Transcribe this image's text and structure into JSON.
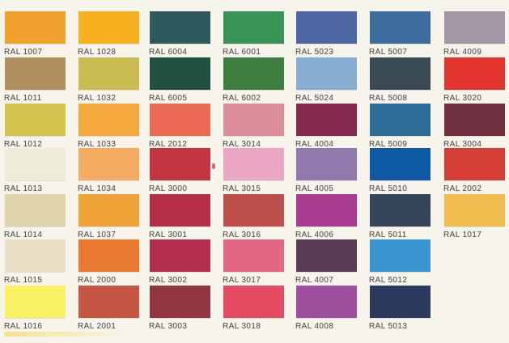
{
  "page": {
    "title": "RAL colour shade chart",
    "background": "#f7f4ec",
    "label_text_color": "#4f4e4b"
  },
  "chart": {
    "columns": [
      {
        "cells": [
          {
            "code": "RAL 1007",
            "color": "#f0a02c"
          },
          {
            "code": "RAL 1011",
            "color": "#b18f5e"
          },
          {
            "code": "RAL 1012",
            "color": "#d3c54e"
          },
          {
            "code": "RAL 1013",
            "color": "#f0ecdc"
          },
          {
            "code": "RAL 1014",
            "color": "#ded3ab"
          },
          {
            "code": "RAL 1015",
            "color": "#e8dfc4"
          },
          {
            "code": "RAL 1016",
            "color": "#f7f163"
          }
        ]
      },
      {
        "cells": [
          {
            "code": "RAL 1028",
            "color": "#f7b01f"
          },
          {
            "code": "RAL 1032",
            "color": "#c9bc50"
          },
          {
            "code": "RAL 1033",
            "color": "#f5a93c"
          },
          {
            "code": "RAL 1034",
            "color": "#f4ab62"
          },
          {
            "code": "RAL 1037",
            "color": "#f0a438"
          },
          {
            "code": "RAL 2000",
            "color": "#e8792f"
          },
          {
            "code": "RAL 2001",
            "color": "#c65543"
          }
        ]
      },
      {
        "cells": [
          {
            "code": "RAL 6004",
            "color": "#2e5a5e"
          },
          {
            "code": "RAL 6005",
            "color": "#1f5041"
          },
          {
            "code": "RAL 2012",
            "color": "#ed6a55"
          },
          {
            "code": "RAL 3000",
            "color": "#c43441"
          },
          {
            "code": "RAL 3001",
            "color": "#b42e47"
          },
          {
            "code": "RAL 3002",
            "color": "#b32e4c"
          },
          {
            "code": "RAL 3003",
            "color": "#923543"
          }
        ]
      },
      {
        "cells": [
          {
            "code": "RAL 6001",
            "color": "#379455"
          },
          {
            "code": "RAL 6002",
            "color": "#3d7e41"
          },
          {
            "code": "RAL 3014",
            "color": "#dc8e9b"
          },
          {
            "code": "RAL 3015",
            "color": "#eba6c3"
          },
          {
            "code": "RAL 3016",
            "color": "#bd4f4c"
          },
          {
            "code": "RAL 3017",
            "color": "#e36682"
          },
          {
            "code": "RAL 3018",
            "color": "#e54c64"
          }
        ]
      },
      {
        "cells": [
          {
            "code": "RAL 5023",
            "color": "#4d66a4"
          },
          {
            "code": "RAL 5024",
            "color": "#85aed0"
          },
          {
            "code": "RAL 4004",
            "color": "#872a50"
          },
          {
            "code": "RAL 4005",
            "color": "#9179ae"
          },
          {
            "code": "RAL 4006",
            "color": "#a83b90"
          },
          {
            "code": "RAL 4007",
            "color": "#5b3c56"
          },
          {
            "code": "RAL 4008",
            "color": "#9e4f9e"
          }
        ]
      },
      {
        "cells": [
          {
            "code": "RAL 5007",
            "color": "#3c6b9e"
          },
          {
            "code": "RAL 5008",
            "color": "#394a54"
          },
          {
            "code": "RAL 5009",
            "color": "#2f6d99"
          },
          {
            "code": "RAL 5010",
            "color": "#0d59a4"
          },
          {
            "code": "RAL 5011",
            "color": "#36455a"
          },
          {
            "code": "RAL 5012",
            "color": "#3a95d3"
          },
          {
            "code": "RAL 5013",
            "color": "#2c3a5f"
          }
        ]
      },
      {
        "cells": [
          {
            "code": "RAL 4009",
            "color": "#a396a6"
          },
          {
            "code": "RAL 3020",
            "color": "#e4342f"
          },
          {
            "code": "RAL 3004",
            "color": "#713040"
          },
          {
            "code": "RAL 2002",
            "color": "#d43e35"
          },
          {
            "code": "RAL 1017",
            "color": "#f2bd4f"
          }
        ]
      }
    ]
  }
}
